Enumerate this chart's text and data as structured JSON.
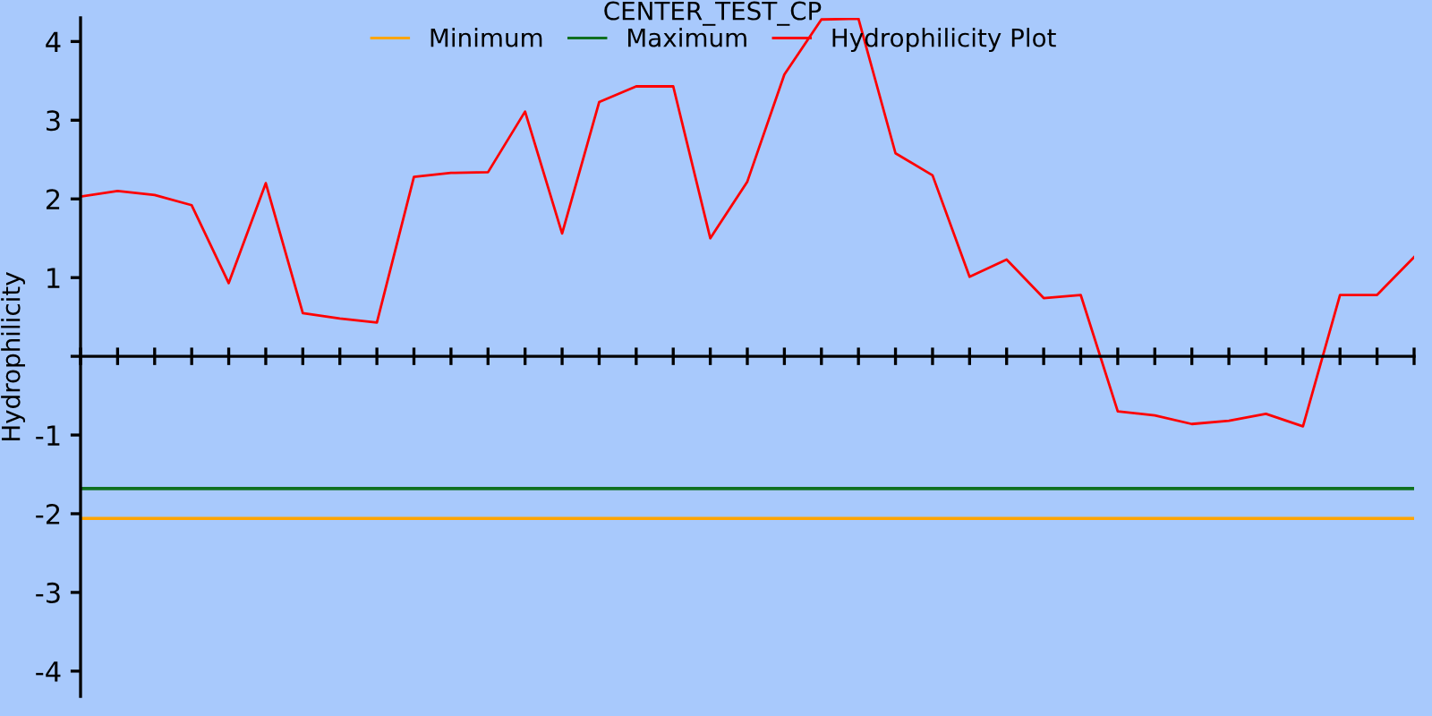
{
  "chart_data": {
    "type": "line",
    "title": "CENTER_TEST_CP",
    "ylabel": "Hydrophilicity",
    "categories": [
      null,
      null,
      null,
      null,
      null,
      null,
      null,
      null,
      null,
      null,
      null,
      null,
      null,
      null,
      null,
      null,
      null,
      null,
      null,
      null,
      null,
      null,
      null,
      null,
      null,
      null,
      null,
      null,
      null,
      null,
      null,
      null,
      null,
      null,
      null,
      null,
      null
    ],
    "series": [
      {
        "name": "Minimum",
        "color": "#ffa500",
        "values": [
          -2.06,
          -2.06,
          -2.06,
          -2.06,
          -2.06,
          -2.06,
          -2.06,
          -2.06,
          -2.06,
          -2.06,
          -2.06,
          -2.06,
          -2.06,
          -2.06,
          -2.06,
          -2.06,
          -2.06,
          -2.06,
          -2.06,
          -2.06,
          -2.06,
          -2.06,
          -2.06,
          -2.06,
          -2.06,
          -2.06,
          -2.06,
          -2.06,
          -2.06,
          -2.06,
          -2.06,
          -2.06,
          -2.06,
          -2.06,
          -2.06,
          -2.06,
          -2.06
        ]
      },
      {
        "name": "Maximum",
        "color": "#107020",
        "values": [
          -1.68,
          -1.68,
          -1.68,
          -1.68,
          -1.68,
          -1.68,
          -1.68,
          -1.68,
          -1.68,
          -1.68,
          -1.68,
          -1.68,
          -1.68,
          -1.68,
          -1.68,
          -1.68,
          -1.68,
          -1.68,
          -1.68,
          -1.68,
          -1.68,
          -1.68,
          -1.68,
          -1.68,
          -1.68,
          -1.68,
          -1.68,
          -1.68,
          -1.68,
          -1.68,
          -1.68,
          -1.68,
          -1.68,
          -1.68,
          -1.68,
          -1.68,
          -1.68
        ]
      },
      {
        "name": "Hydrophilicity Plot",
        "color": "#ff0000",
        "values": [
          2.03,
          2.1,
          2.05,
          1.92,
          0.93,
          2.2,
          0.55,
          0.48,
          0.43,
          2.28,
          2.33,
          2.34,
          3.11,
          1.56,
          3.23,
          3.43,
          3.43,
          1.5,
          2.22,
          3.58,
          4.28,
          4.29,
          2.58,
          2.3,
          1.01,
          1.23,
          0.74,
          0.78,
          -0.7,
          -0.75,
          -0.86,
          -0.82,
          -0.73,
          -0.89,
          0.78,
          0.78,
          1.26
        ]
      }
    ],
    "ylim": [
      -4.32,
      4.3
    ],
    "yticks": [
      -4,
      -3,
      -2,
      -1,
      {
        "value": 0,
        "label": null
      },
      1,
      2,
      3,
      4
    ],
    "legend": "top",
    "marker": "none",
    "line_style": "solid"
  }
}
